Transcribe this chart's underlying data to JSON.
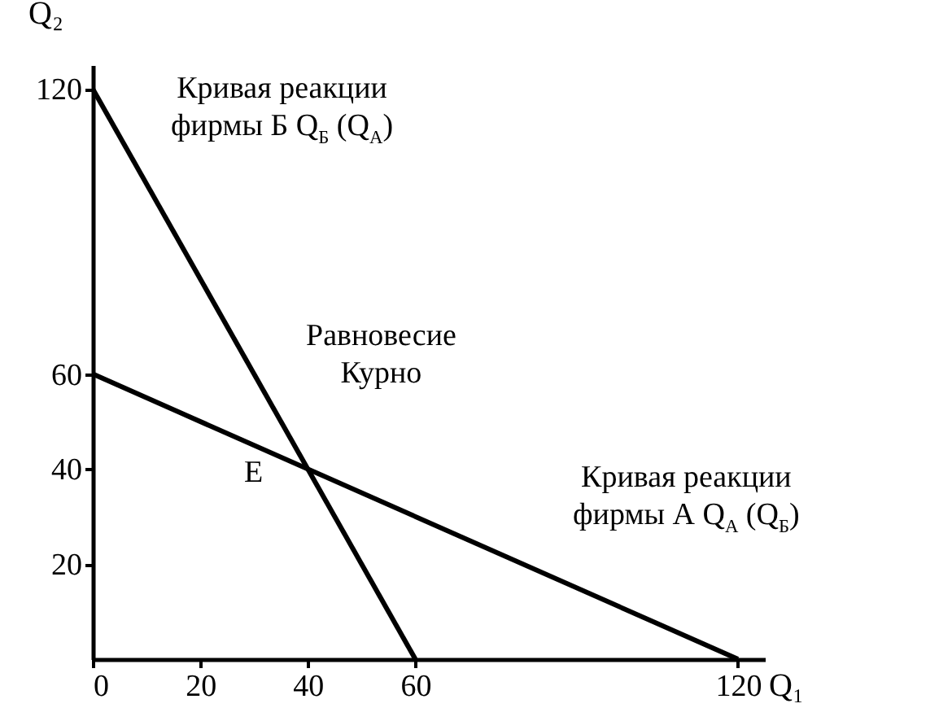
{
  "chart_data": {
    "type": "line",
    "xlabel": "Q₁",
    "ylabel": "Q₂",
    "series": [
      {
        "x": [
          0,
          60
        ],
        "values": [
          120,
          0
        ],
        "color": "#000000"
      },
      {
        "x": [
          0,
          120
        ],
        "values": [
          60,
          0
        ],
        "color": "#000000"
      }
    ],
    "xlim": [
      0,
      125
    ],
    "ylim": [
      0,
      125
    ],
    "xticks": [
      0,
      20,
      40,
      60,
      120
    ],
    "yticks": [
      20,
      40,
      60,
      120
    ],
    "grid": false,
    "marker": "none",
    "line_style": "solid",
    "annotations": [
      "Кривая реакции\nфирмы Б Q$_{Б}$ (Q$_{А}$)",
      "Равновесие\nКурно",
      "E",
      "Кривая реакции\nфирмы А Q$_{А}$ (Q$_{Б}$)"
    ]
  }
}
